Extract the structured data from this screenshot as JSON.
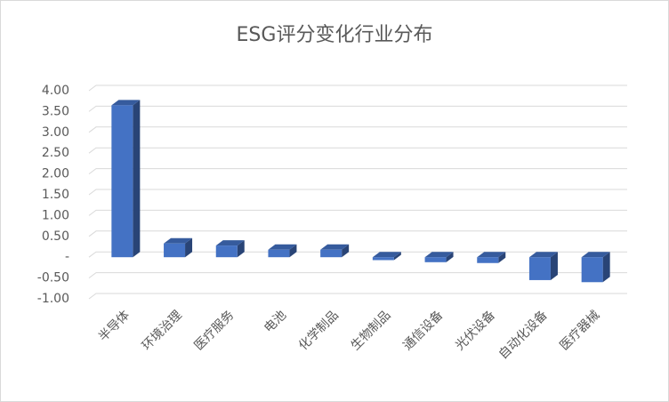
{
  "chart_data": {
    "type": "bar3d",
    "title": "ESG评分变化行业分布",
    "categories": [
      "半导体",
      "环境治理",
      "医疗服务",
      "电池",
      "化学制品",
      "生物制品",
      "通信设备",
      "光伏设备",
      "自动化设备",
      "医疗器械"
    ],
    "values": [
      3.65,
      0.33,
      0.28,
      0.18,
      0.18,
      -0.07,
      -0.12,
      -0.14,
      -0.55,
      -0.6
    ],
    "color": "#4472c4",
    "ylim": [
      -1,
      4
    ],
    "yticks": [
      {
        "value": -1,
        "label": "-1.00"
      },
      {
        "value": -0.5,
        "label": "-0.50"
      },
      {
        "value": 0,
        "label": "-"
      },
      {
        "value": 0.5,
        "label": "0.50"
      },
      {
        "value": 1,
        "label": "1.00"
      },
      {
        "value": 1.5,
        "label": "1.50"
      },
      {
        "value": 2,
        "label": "2.00"
      },
      {
        "value": 2.5,
        "label": "2.50"
      },
      {
        "value": 3,
        "label": "3.00"
      },
      {
        "value": 3.5,
        "label": "3.50"
      },
      {
        "value": 4,
        "label": "4.00"
      }
    ],
    "grid": true
  }
}
